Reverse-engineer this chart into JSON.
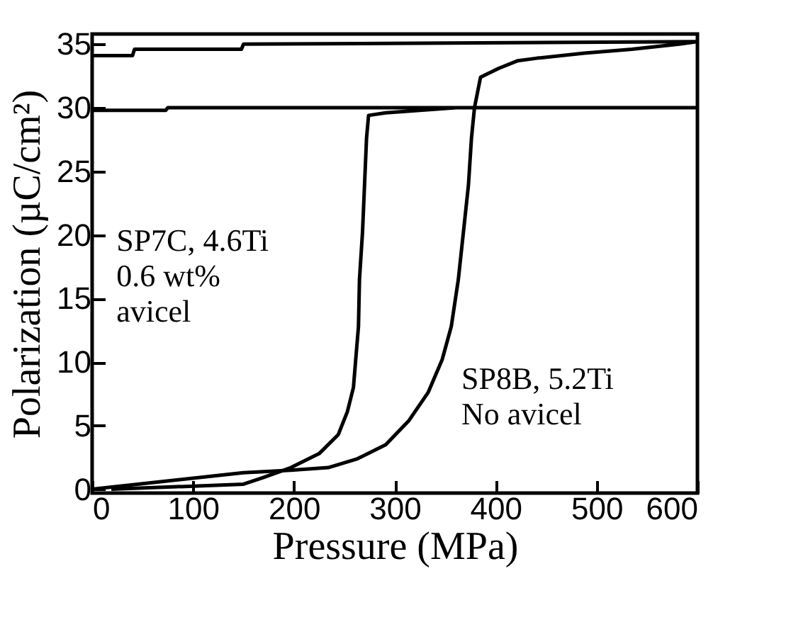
{
  "chart_data": {
    "type": "line",
    "xlabel": "Pressure (MPa)",
    "ylabel": "Polarization (µC/cm²)",
    "xlim": [
      0,
      600
    ],
    "ylim": [
      -0.3,
      35.8
    ],
    "xticks": [
      0,
      100,
      200,
      300,
      400,
      500,
      600
    ],
    "yticks": [
      0,
      5,
      10,
      15,
      20,
      25,
      30,
      35
    ],
    "grid": false,
    "marker": "none",
    "line_style": "solid",
    "series": [
      {
        "name": "SP7C, 4.6Ti\n0.6 wt%\navicel",
        "color": "#000000",
        "x": [
          19,
          150,
          169,
          197,
          225,
          244,
          253,
          259,
          262,
          264,
          265,
          268,
          270,
          272,
          274,
          291,
          361,
          600,
          75,
          73,
          0
        ],
        "values": [
          0,
          0.4,
          0.9,
          1.7,
          2.8,
          4.3,
          6.1,
          8,
          10.9,
          12.8,
          16.5,
          20.2,
          23.9,
          27.6,
          29.4,
          29.6,
          30,
          30,
          30,
          29.8,
          29.8
        ]
      },
      {
        "name": "SP8B, 5.2Ti\nNo avicel",
        "color": "#000000",
        "x": [
          0,
          150,
          197,
          234,
          263,
          291,
          314,
          333,
          347,
          356,
          363,
          368,
          373,
          376,
          379,
          385,
          403,
          422,
          441,
          488,
          535,
          582,
          600,
          150,
          148,
          42,
          40,
          0
        ],
        "values": [
          0,
          1.3,
          1.5,
          1.7,
          2.4,
          3.5,
          5.4,
          7.6,
          10.2,
          12.8,
          16.5,
          20.2,
          23.9,
          27.6,
          30,
          32.4,
          33.1,
          33.7,
          33.9,
          34.3,
          34.6,
          35,
          35.2,
          35,
          34.6,
          34.6,
          34.1,
          34.1
        ]
      }
    ]
  }
}
